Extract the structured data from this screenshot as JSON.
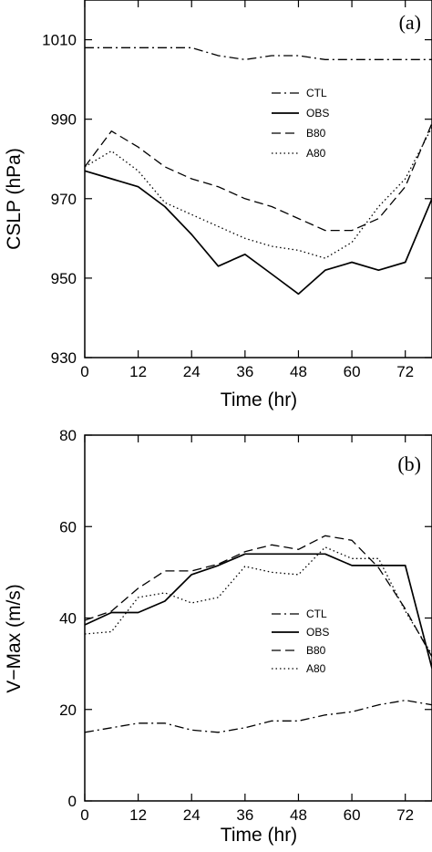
{
  "chart_data": [
    {
      "type": "line",
      "panel_label": "(a)",
      "xlabel": "Time (hr)",
      "ylabel": "CSLP (hPa)",
      "xlim": [
        0,
        78
      ],
      "ylim": [
        930,
        1020
      ],
      "xticks": [
        0,
        12,
        24,
        36,
        48,
        60,
        72
      ],
      "yticks": [
        930,
        950,
        970,
        990,
        1010
      ],
      "legend_position": "top-right",
      "series": [
        {
          "name": "CTL",
          "style": "dashdot",
          "x": [
            0,
            6,
            12,
            18,
            24,
            30,
            36,
            42,
            48,
            54,
            60,
            66,
            72,
            78
          ],
          "y": [
            1008,
            1008,
            1008,
            1008,
            1008,
            1006,
            1005,
            1006,
            1006,
            1005,
            1005,
            1005,
            1005,
            1005
          ]
        },
        {
          "name": "OBS",
          "style": "solid",
          "x": [
            0,
            6,
            12,
            18,
            24,
            30,
            36,
            42,
            48,
            54,
            60,
            66,
            72,
            78
          ],
          "y": [
            977,
            975,
            973,
            968,
            961,
            953,
            956,
            951,
            946,
            952,
            954,
            952,
            954,
            970
          ]
        },
        {
          "name": "B80",
          "style": "dashed",
          "x": [
            0,
            6,
            12,
            18,
            24,
            30,
            36,
            42,
            48,
            54,
            60,
            66,
            72,
            78
          ],
          "y": [
            978,
            987,
            983,
            978,
            975,
            973,
            970,
            968,
            965,
            962,
            962,
            965,
            973,
            989
          ]
        },
        {
          "name": "A80",
          "style": "dotted",
          "x": [
            0,
            6,
            12,
            18,
            24,
            30,
            36,
            42,
            48,
            54,
            60,
            66,
            72,
            78
          ],
          "y": [
            978,
            982,
            977,
            969,
            966,
            963,
            960,
            958,
            957,
            955,
            959,
            968,
            975,
            988
          ]
        }
      ]
    },
    {
      "type": "line",
      "panel_label": "(b)",
      "xlabel": "Time (hr)",
      "ylabel": "V−Max (m/s)",
      "xlim": [
        0,
        78
      ],
      "ylim": [
        0,
        80
      ],
      "xticks": [
        0,
        12,
        24,
        36,
        48,
        60,
        72
      ],
      "yticks": [
        0,
        20,
        40,
        60,
        80
      ],
      "legend_position": "right",
      "series": [
        {
          "name": "CTL",
          "style": "dashdot",
          "x": [
            0,
            6,
            12,
            18,
            24,
            30,
            36,
            42,
            48,
            54,
            60,
            66,
            72,
            78
          ],
          "y": [
            15,
            16,
            17,
            17,
            15.5,
            15,
            16,
            17.5,
            17.5,
            18.8,
            19.5,
            21,
            22,
            21
          ]
        },
        {
          "name": "OBS",
          "style": "solid",
          "x": [
            0,
            6,
            12,
            18,
            24,
            30,
            36,
            42,
            48,
            54,
            60,
            66,
            72,
            78
          ],
          "y": [
            38.5,
            41.2,
            41.2,
            43.7,
            49.5,
            51.5,
            54,
            54,
            54,
            54,
            51.5,
            51.5,
            51.5,
            29
          ]
        },
        {
          "name": "B80",
          "style": "dashed",
          "x": [
            0,
            6,
            12,
            18,
            24,
            30,
            36,
            42,
            48,
            54,
            60,
            66,
            72,
            78
          ],
          "y": [
            39.5,
            41.5,
            46.5,
            50.3,
            50.3,
            51.8,
            54.5,
            56,
            55,
            58,
            57,
            51,
            42,
            31.5
          ]
        },
        {
          "name": "A80",
          "style": "dotted",
          "x": [
            0,
            6,
            12,
            18,
            24,
            30,
            36,
            42,
            48,
            54,
            60,
            66,
            72,
            78
          ],
          "y": [
            36.5,
            37,
            44.5,
            45.5,
            43.3,
            44.5,
            51.3,
            50,
            49.5,
            55.5,
            53,
            53,
            41.5,
            32
          ]
        }
      ]
    }
  ]
}
